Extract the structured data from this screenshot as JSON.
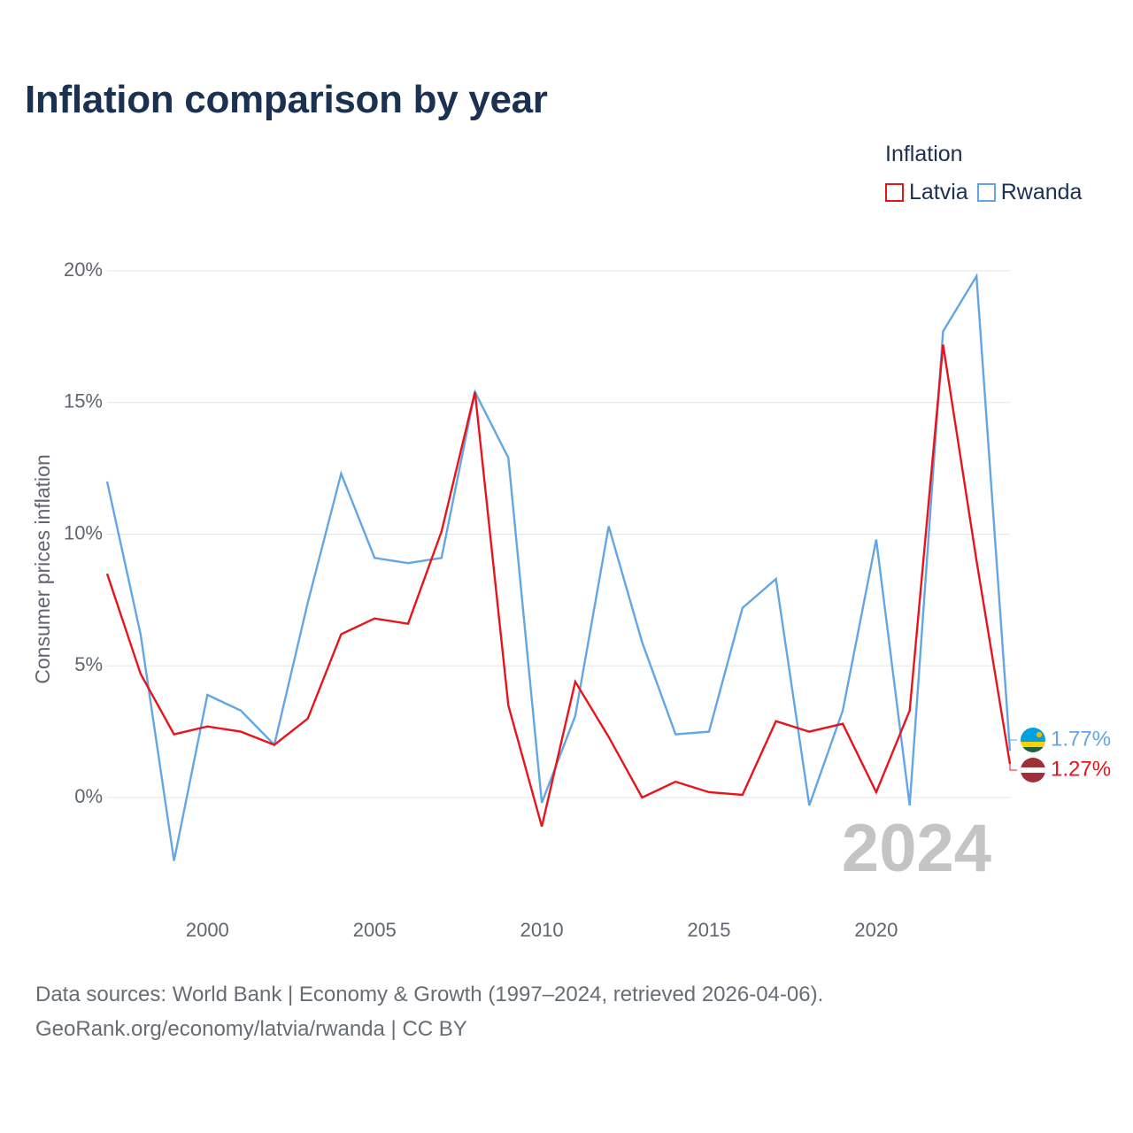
{
  "title": "Inflation comparison by year",
  "legend": {
    "title": "Inflation",
    "items": [
      {
        "label": "Latvia",
        "color": "#e8141b"
      },
      {
        "label": "Rwanda",
        "color": "#63a6e3"
      }
    ]
  },
  "footer": {
    "line1": "Data sources: World Bank | Economy & Growth (1997–2024, retrieved 2026-04-06).",
    "line2": "GeoRank.org/economy/latvia/rwanda | CC BY"
  },
  "chart_data": {
    "type": "line",
    "title": "Inflation comparison by year",
    "xlabel": "",
    "ylabel": "Consumer prices inflation",
    "x": [
      1997,
      1998,
      1999,
      2000,
      2001,
      2002,
      2003,
      2004,
      2005,
      2006,
      2007,
      2008,
      2009,
      2010,
      2011,
      2012,
      2013,
      2014,
      2015,
      2016,
      2017,
      2018,
      2019,
      2020,
      2021,
      2022,
      2023,
      2024
    ],
    "xlim": [
      1997,
      2024
    ],
    "ylim": [
      -3.5,
      20.3
    ],
    "x_ticks": [
      2000,
      2005,
      2010,
      2015,
      2020
    ],
    "x_tick_labels": [
      "2000",
      "2005",
      "2010",
      "2015",
      "2020"
    ],
    "y_ticks": [
      0,
      5,
      10,
      15,
      20
    ],
    "y_tick_labels": [
      "0%",
      "5%",
      "10%",
      "15%",
      "20%"
    ],
    "grid": true,
    "legend_position": "top-right",
    "current_year_label": "2024",
    "series": [
      {
        "name": "Latvia",
        "color": "#e8141b",
        "values": [
          8.5,
          4.7,
          2.4,
          2.7,
          2.5,
          2.0,
          3.0,
          6.2,
          6.8,
          6.6,
          10.1,
          15.4,
          3.5,
          -1.1,
          4.4,
          2.3,
          0.0,
          0.6,
          0.2,
          0.1,
          2.9,
          2.5,
          2.8,
          0.2,
          3.3,
          17.2,
          9.0,
          1.27
        ],
        "end_label": "1.27%",
        "flag": "latvia-flag-icon"
      },
      {
        "name": "Rwanda",
        "color": "#63a6e3",
        "values": [
          12.0,
          6.2,
          -2.4,
          3.9,
          3.3,
          2.0,
          7.4,
          12.3,
          9.1,
          8.9,
          9.1,
          15.4,
          12.9,
          -0.2,
          3.1,
          10.3,
          5.9,
          2.4,
          2.5,
          7.2,
          8.3,
          -0.3,
          3.3,
          9.8,
          -0.3,
          17.7,
          19.8,
          1.77
        ],
        "end_label": "1.77%",
        "flag": "rwanda-flag-icon"
      }
    ]
  }
}
